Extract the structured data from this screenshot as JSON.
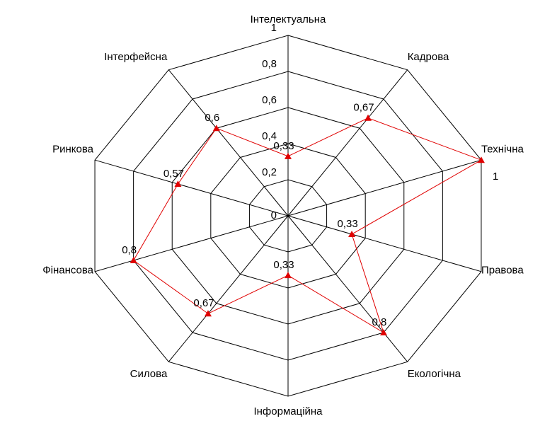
{
  "chart_data": {
    "type": "radar",
    "categories": [
      "Інтелектуальна",
      "Кадрова",
      "Технічна",
      "Правова",
      "Екологічна",
      "Інформаційна",
      "Силова",
      "Фінансова",
      "Ринкова",
      "Інтерфейсна"
    ],
    "values": [
      0.33,
      0.67,
      1,
      0.33,
      0.8,
      0.33,
      0.67,
      0.8,
      0.57,
      0.6
    ],
    "value_labels": [
      "0,33",
      "0,67",
      "1",
      "0,33",
      "0,8",
      "0,33",
      "0,67",
      "0,8",
      "0,57",
      "0,6"
    ],
    "color": "#e00000",
    "rlim": [
      0,
      1
    ],
    "rticks": [
      0,
      {
        "value": 0.2,
        "label": "0,2"
      },
      {
        "value": 0.4,
        "label": "0,4"
      },
      {
        "value": 0.6,
        "label": "0,6"
      },
      {
        "value": 0.8,
        "label": "0,8"
      },
      1
    ],
    "grid": true
  }
}
